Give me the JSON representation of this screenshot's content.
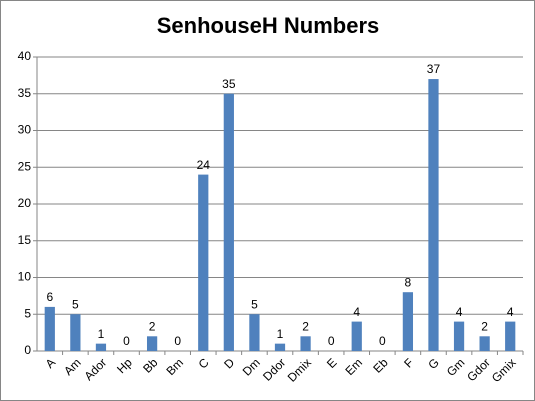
{
  "chart_data": {
    "type": "bar",
    "title": "SenhouseH Numbers",
    "categories": [
      "A",
      "Am",
      "Ador",
      "Hp",
      "Bb",
      "Bm",
      "C",
      "D",
      "Dm",
      "Ddor",
      "Dmix",
      "E",
      "Em",
      "Eb",
      "F",
      "G",
      "Gm",
      "Gdor",
      "Gmix"
    ],
    "values": [
      6,
      5,
      1,
      0,
      2,
      0,
      24,
      35,
      5,
      1,
      2,
      0,
      4,
      0,
      8,
      37,
      4,
      2,
      4
    ],
    "color": "#4f81bd",
    "ylim": [
      0,
      40
    ],
    "yticks": [
      0,
      5,
      10,
      15,
      20,
      25,
      30,
      35,
      40
    ],
    "grid": true
  }
}
